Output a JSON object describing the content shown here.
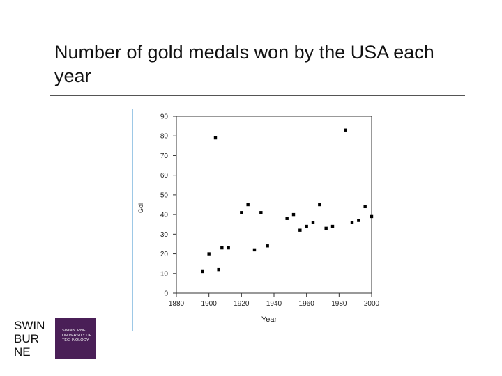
{
  "slide": {
    "title": "Number of gold medals won by the USA each year"
  },
  "chart_data": {
    "type": "scatter",
    "ylabel": "Gol",
    "xlabel": "Year",
    "xlim": [
      1880,
      2000
    ],
    "ylim": [
      0,
      90
    ],
    "xticks": [
      1880,
      1900,
      1920,
      1940,
      1960,
      1980,
      2000
    ],
    "yticks": [
      0,
      10,
      20,
      30,
      40,
      50,
      60,
      70,
      80,
      90
    ],
    "grid": false,
    "points": [
      {
        "x": 1896,
        "y": 11
      },
      {
        "x": 1900,
        "y": 20
      },
      {
        "x": 1904,
        "y": 79
      },
      {
        "x": 1906,
        "y": 12
      },
      {
        "x": 1908,
        "y": 23
      },
      {
        "x": 1912,
        "y": 23
      },
      {
        "x": 1920,
        "y": 41
      },
      {
        "x": 1924,
        "y": 45
      },
      {
        "x": 1928,
        "y": 22
      },
      {
        "x": 1932,
        "y": 41
      },
      {
        "x": 1936,
        "y": 24
      },
      {
        "x": 1948,
        "y": 38
      },
      {
        "x": 1952,
        "y": 40
      },
      {
        "x": 1956,
        "y": 32
      },
      {
        "x": 1960,
        "y": 34
      },
      {
        "x": 1964,
        "y": 36
      },
      {
        "x": 1968,
        "y": 45
      },
      {
        "x": 1972,
        "y": 33
      },
      {
        "x": 1976,
        "y": 34
      },
      {
        "x": 1984,
        "y": 83
      },
      {
        "x": 1988,
        "y": 36
      },
      {
        "x": 1992,
        "y": 37
      },
      {
        "x": 1996,
        "y": 44
      },
      {
        "x": 2000,
        "y": 39
      }
    ]
  },
  "logo": {
    "line1": "SWIN",
    "line2": "BUR",
    "line3": "NE",
    "sub1": "SWINBURNE",
    "sub2": "UNIVERSITY OF",
    "sub3": "TECHNOLOGY"
  }
}
